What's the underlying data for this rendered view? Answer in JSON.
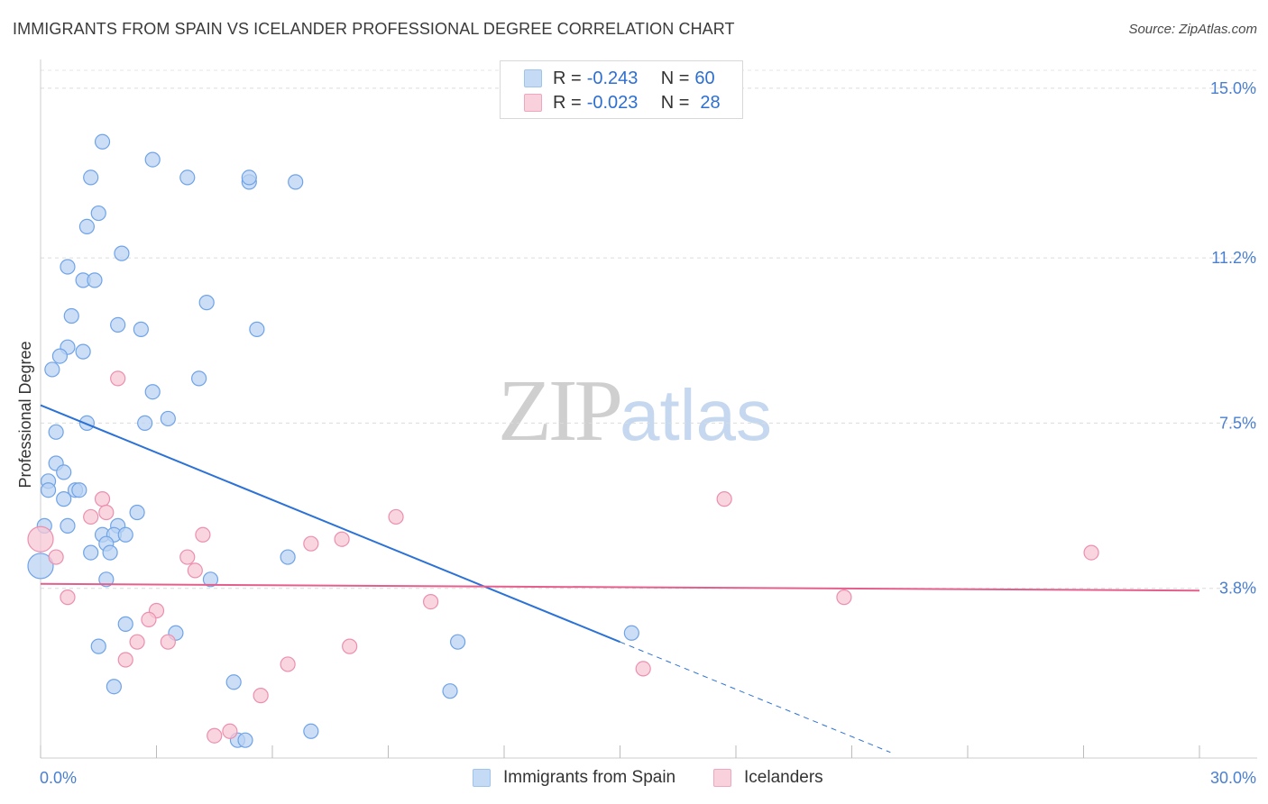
{
  "title": "IMMIGRANTS FROM SPAIN VS ICELANDER PROFESSIONAL DEGREE CORRELATION CHART",
  "source": "Source: ZipAtlas.com",
  "watermark": {
    "zip": "ZIP",
    "atlas": "atlas"
  },
  "legend": [
    {
      "r_label": "R =",
      "r_value": "-0.243",
      "n_label": "N =",
      "n_value": "60",
      "color": "#9dc3ef",
      "fill": "#c5dbf5"
    },
    {
      "r_label": "R =",
      "r_value": "-0.023",
      "n_label": "N =",
      "n_value": "28",
      "color": "#f0a6be",
      "fill": "#f9d1dd"
    }
  ],
  "bottom_legend": [
    "Immigrants from Spain",
    "Icelanders"
  ],
  "chart_data": {
    "type": "scatter",
    "title": "IMMIGRANTS FROM SPAIN VS ICELANDER PROFESSIONAL DEGREE CORRELATION CHART",
    "xlabel": "",
    "ylabel": "Professional Degree",
    "xlim": [
      0,
      30
    ],
    "ylim": [
      0,
      15.4
    ],
    "x_tick_labels": [
      "0.0%",
      "30.0%"
    ],
    "y_ticks": [
      3.8,
      7.5,
      11.2,
      15.0
    ],
    "y_tick_labels": [
      "3.8%",
      "7.5%",
      "11.2%",
      "15.0%"
    ],
    "grid": "horizontal dashed",
    "legend_position": "top-center",
    "series": [
      {
        "name": "Immigrants from Spain",
        "color": "#6fa3e8",
        "fill": "#b9d3f3",
        "trend": {
          "x0": 0,
          "y0": 7.9,
          "x1": 15.0,
          "y1": 2.6,
          "dashed_to_x": 22.0
        },
        "points": [
          [
            1.6,
            13.8
          ],
          [
            2.9,
            13.4
          ],
          [
            1.3,
            13.0
          ],
          [
            3.8,
            13.0
          ],
          [
            5.4,
            12.9
          ],
          [
            5.4,
            13.0
          ],
          [
            6.6,
            12.9
          ],
          [
            1.5,
            12.2
          ],
          [
            1.2,
            11.9
          ],
          [
            2.1,
            11.3
          ],
          [
            0.7,
            11.0
          ],
          [
            1.1,
            10.7
          ],
          [
            1.4,
            10.7
          ],
          [
            4.3,
            10.2
          ],
          [
            0.8,
            9.9
          ],
          [
            2.0,
            9.7
          ],
          [
            2.6,
            9.6
          ],
          [
            5.6,
            9.6
          ],
          [
            0.7,
            9.2
          ],
          [
            1.1,
            9.1
          ],
          [
            0.5,
            9.0
          ],
          [
            0.3,
            8.7
          ],
          [
            4.1,
            8.5
          ],
          [
            2.9,
            8.2
          ],
          [
            3.3,
            7.6
          ],
          [
            2.7,
            7.5
          ],
          [
            1.2,
            7.5
          ],
          [
            0.4,
            7.3
          ],
          [
            0.4,
            6.6
          ],
          [
            0.6,
            6.4
          ],
          [
            0.2,
            6.2
          ],
          [
            0.2,
            6.0
          ],
          [
            0.9,
            6.0
          ],
          [
            1.0,
            6.0
          ],
          [
            0.6,
            5.8
          ],
          [
            2.5,
            5.5
          ],
          [
            0.1,
            5.2
          ],
          [
            0.7,
            5.2
          ],
          [
            2.0,
            5.2
          ],
          [
            1.6,
            5.0
          ],
          [
            1.9,
            5.0
          ],
          [
            2.2,
            5.0
          ],
          [
            1.7,
            4.8
          ],
          [
            1.3,
            4.6
          ],
          [
            1.8,
            4.6
          ],
          [
            6.4,
            4.5
          ],
          [
            0.0,
            4.3
          ],
          [
            1.7,
            4.0
          ],
          [
            4.4,
            4.0
          ],
          [
            2.2,
            3.0
          ],
          [
            3.5,
            2.8
          ],
          [
            15.3,
            2.8
          ],
          [
            10.8,
            2.6
          ],
          [
            1.5,
            2.5
          ],
          [
            5.0,
            1.7
          ],
          [
            1.9,
            1.6
          ],
          [
            10.6,
            1.5
          ],
          [
            7.0,
            0.6
          ],
          [
            5.1,
            0.4
          ],
          [
            5.3,
            0.4
          ]
        ]
      },
      {
        "name": "Icelanders",
        "color": "#ec8fae",
        "fill": "#f7c7d6",
        "trend": {
          "x0": 0,
          "y0": 3.9,
          "x1": 30.0,
          "y1": 3.75
        },
        "points": [
          [
            2.0,
            8.5
          ],
          [
            1.6,
            5.8
          ],
          [
            17.7,
            5.8
          ],
          [
            1.7,
            5.5
          ],
          [
            1.3,
            5.4
          ],
          [
            9.2,
            5.4
          ],
          [
            4.2,
            5.0
          ],
          [
            7.8,
            4.9
          ],
          [
            0.0,
            4.9
          ],
          [
            7.0,
            4.8
          ],
          [
            0.4,
            4.5
          ],
          [
            3.8,
            4.5
          ],
          [
            27.2,
            4.6
          ],
          [
            4.0,
            4.2
          ],
          [
            0.7,
            3.6
          ],
          [
            10.1,
            3.5
          ],
          [
            20.8,
            3.6
          ],
          [
            3.0,
            3.3
          ],
          [
            2.8,
            3.1
          ],
          [
            2.5,
            2.6
          ],
          [
            3.3,
            2.6
          ],
          [
            8.0,
            2.5
          ],
          [
            2.2,
            2.2
          ],
          [
            6.4,
            2.1
          ],
          [
            15.6,
            2.0
          ],
          [
            5.7,
            1.4
          ],
          [
            4.9,
            0.6
          ],
          [
            4.5,
            0.5
          ]
        ]
      }
    ]
  }
}
